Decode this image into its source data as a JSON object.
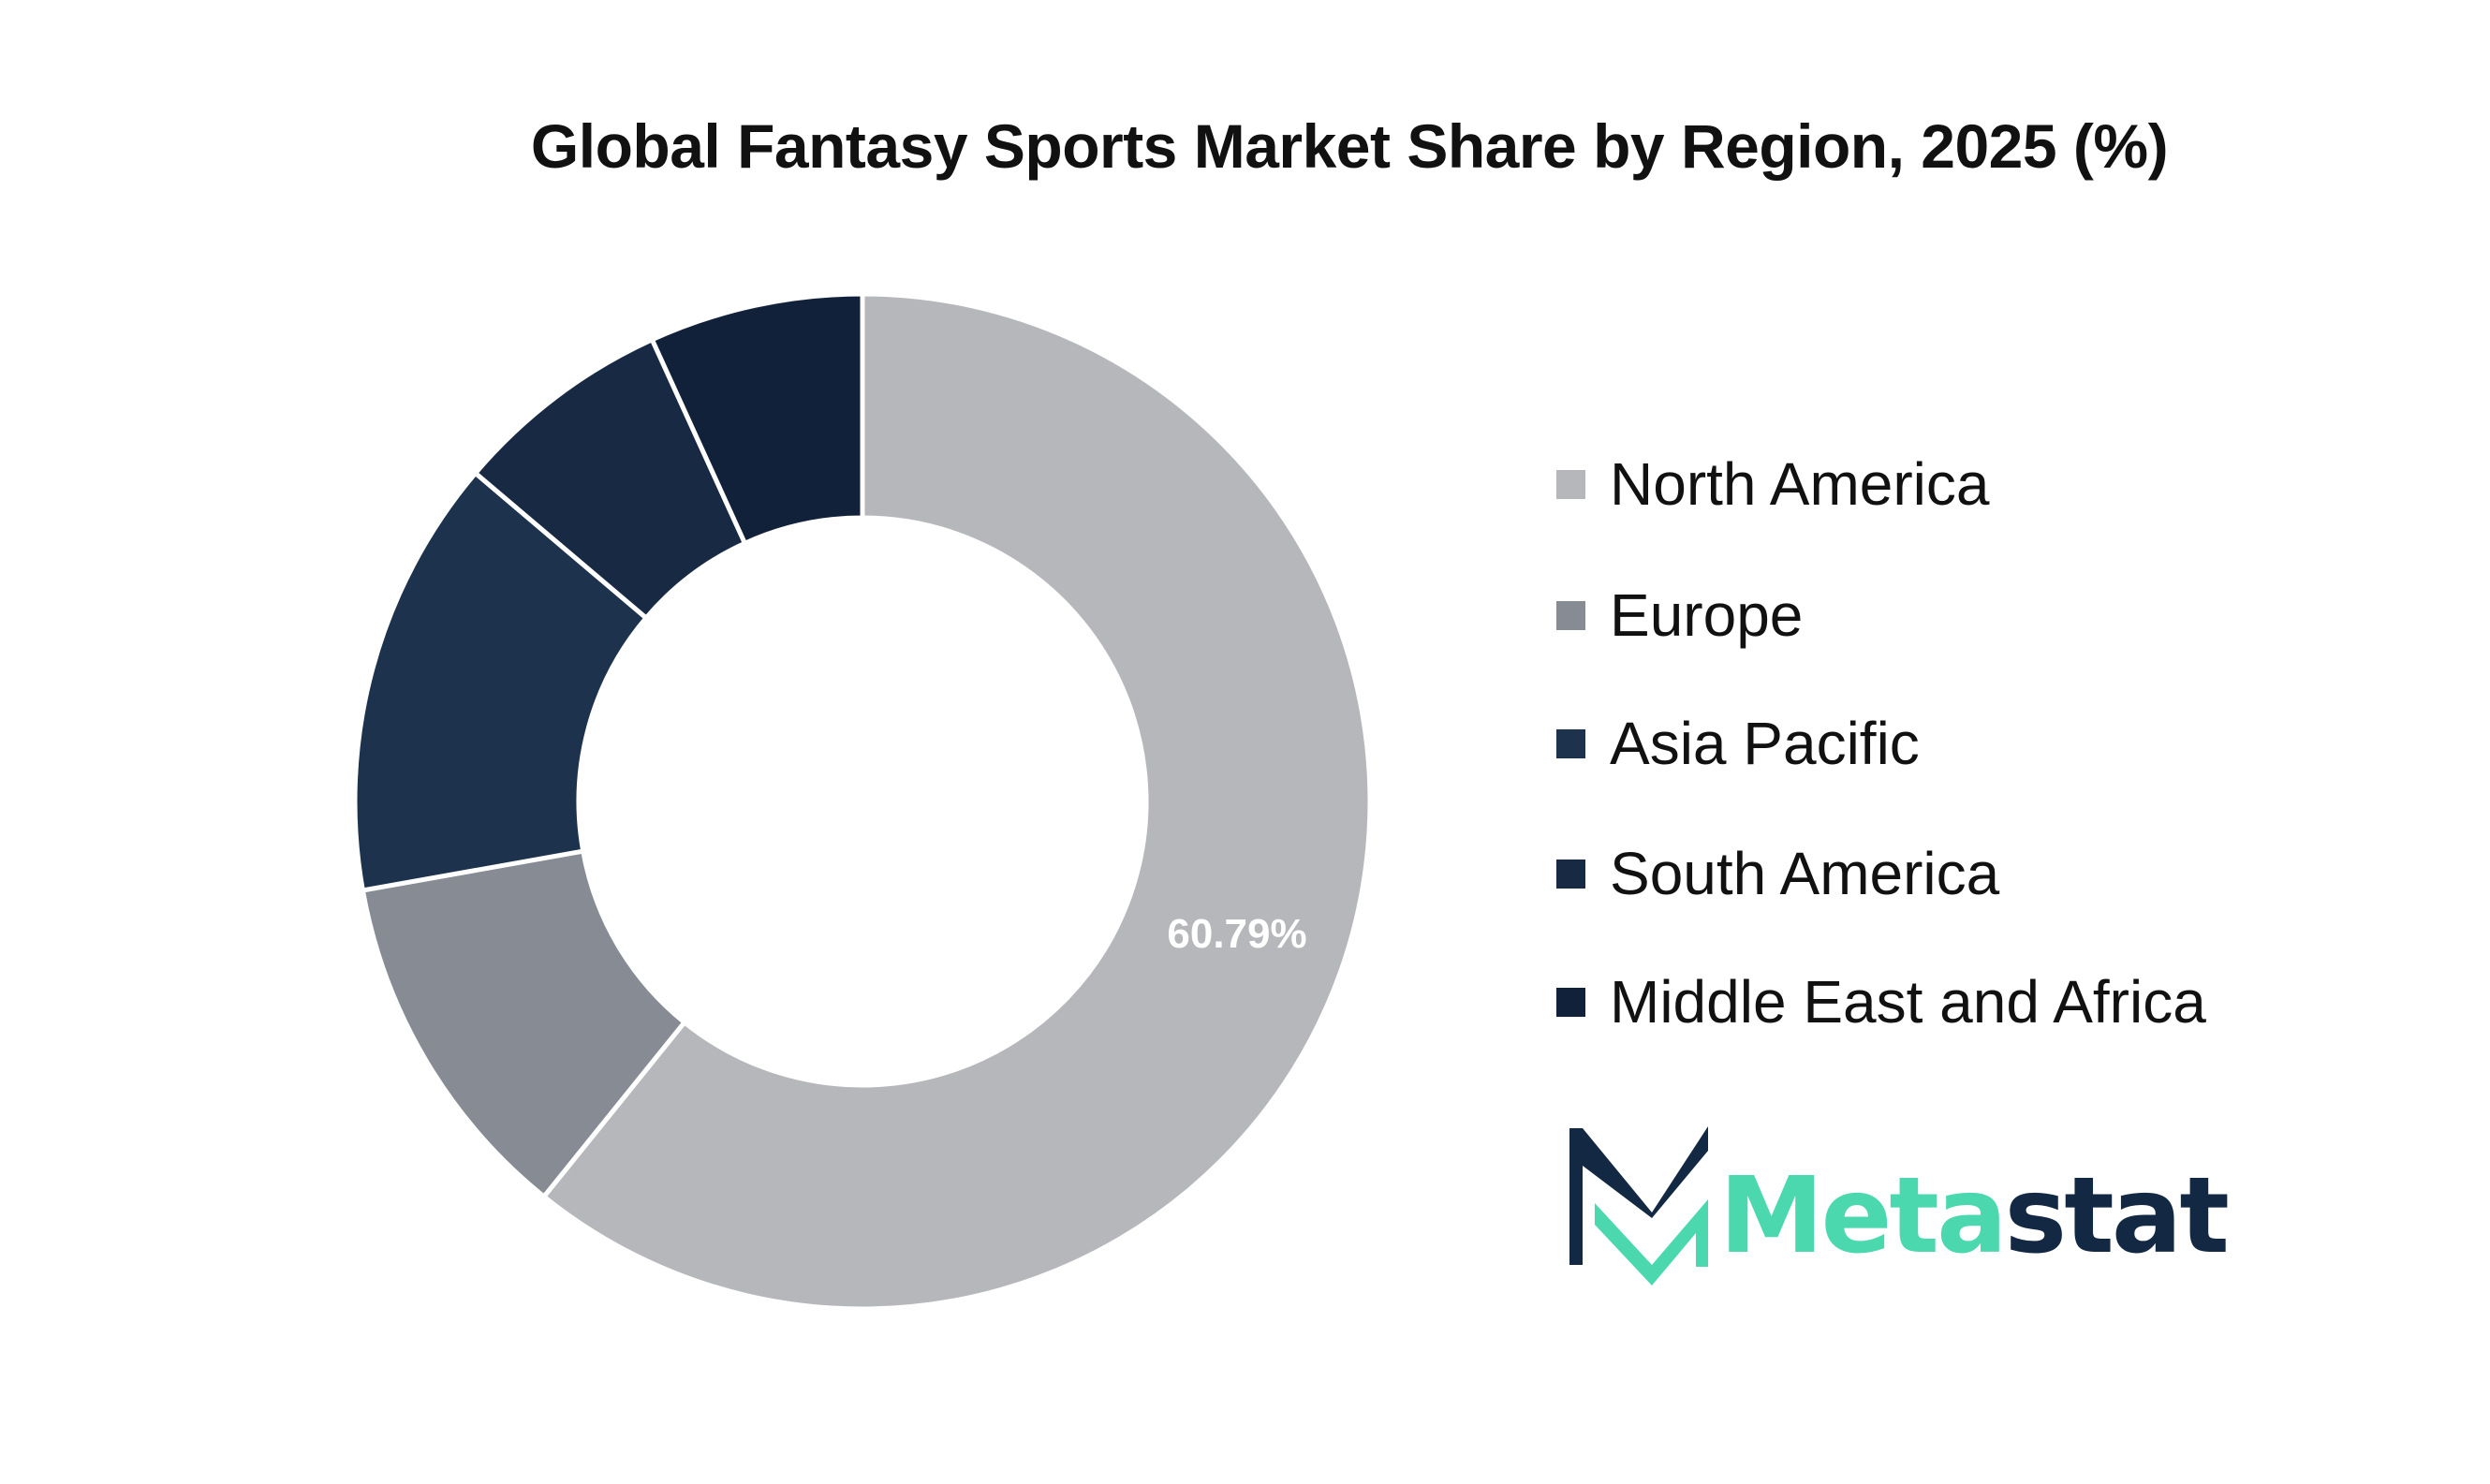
{
  "chart_data": {
    "type": "pie",
    "variant": "donut",
    "title": "Global Fantasy Sports Market Share by Region, 2025 (%)",
    "categories": [
      "North America",
      "Europe",
      "Asia Pacific",
      "South America",
      "Middle East and Africa"
    ],
    "values": [
      60.79,
      11.4,
      14.0,
      7.0,
      6.8
    ],
    "colors": [
      "#b6b7ba",
      "#878b93",
      "#1c324d",
      "#182a43",
      "#12213a"
    ],
    "data_labels": [
      "60.79%",
      "",
      "",
      "",
      ""
    ],
    "legend_position": "right"
  },
  "logo": {
    "text_green": "Meta",
    "text_dark": "stat",
    "green": "#4cd8ae",
    "dark": "#132842"
  }
}
